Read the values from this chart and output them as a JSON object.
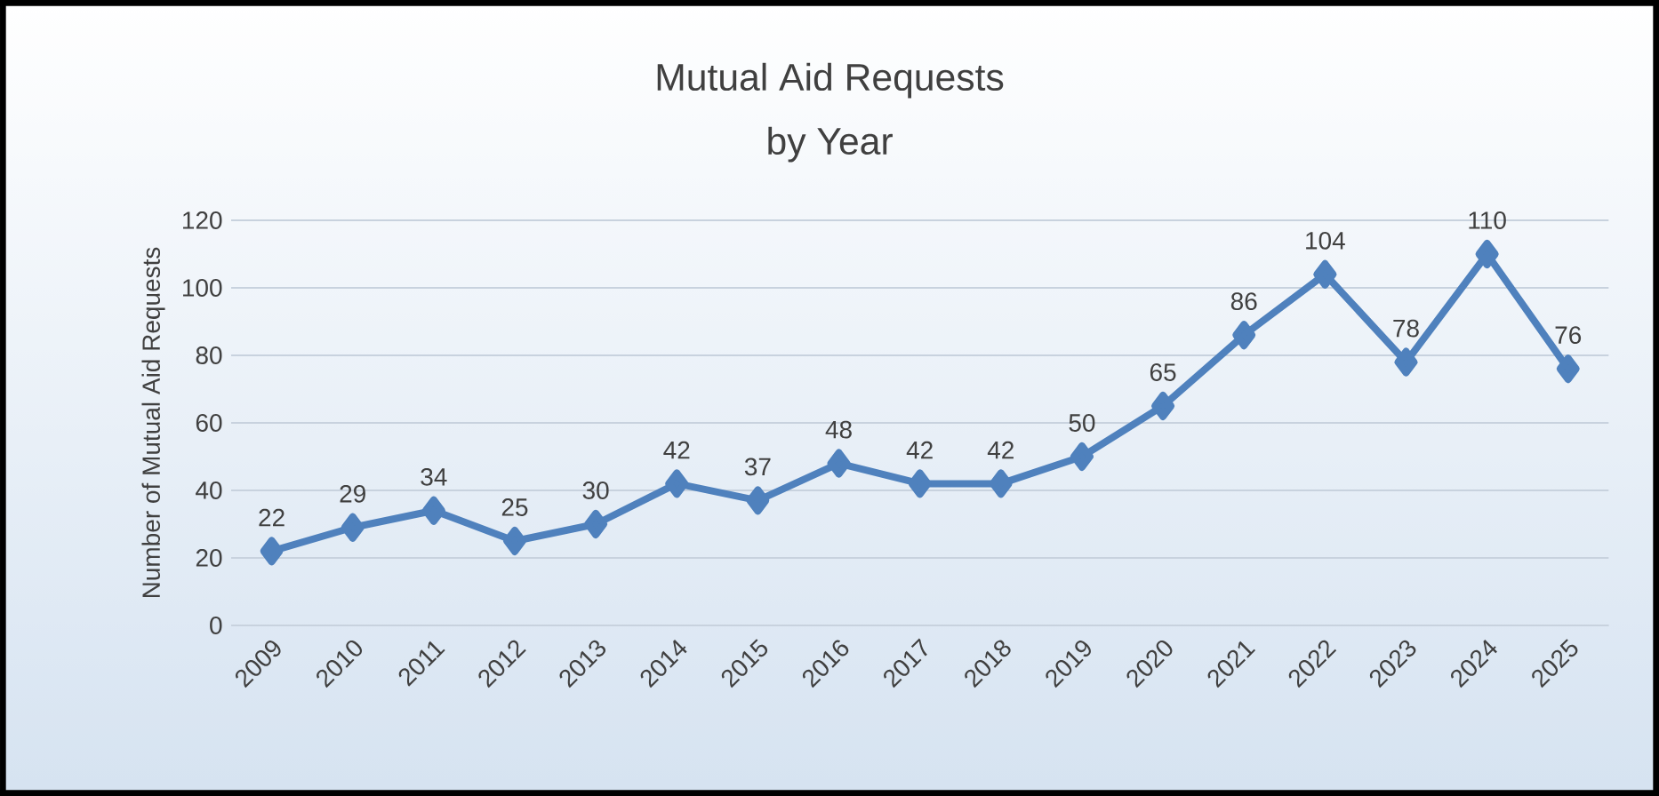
{
  "chart_data": {
    "type": "line",
    "title": "Mutual Aid Requests",
    "subtitle": "by Year",
    "ylabel": "Number of Mutual Aid Requests",
    "categories": [
      "2009",
      "2010",
      "2011",
      "2012",
      "2013",
      "2014",
      "2015",
      "2016",
      "2017",
      "2018",
      "2019",
      "2020",
      "2021",
      "2022",
      "2023",
      "2024",
      "2025"
    ],
    "series": [
      {
        "color": "#4f81bd",
        "values": [
          22,
          29,
          34,
          25,
          30,
          42,
          37,
          48,
          42,
          42,
          50,
          65,
          86,
          104,
          78,
          110,
          76
        ]
      }
    ],
    "ylim": [
      0,
      120
    ],
    "yticks": [
      0,
      20,
      40,
      60,
      80,
      100,
      120
    ],
    "grid": "y",
    "marker": "diamond",
    "line_style": "solid",
    "data_labels": true
  }
}
